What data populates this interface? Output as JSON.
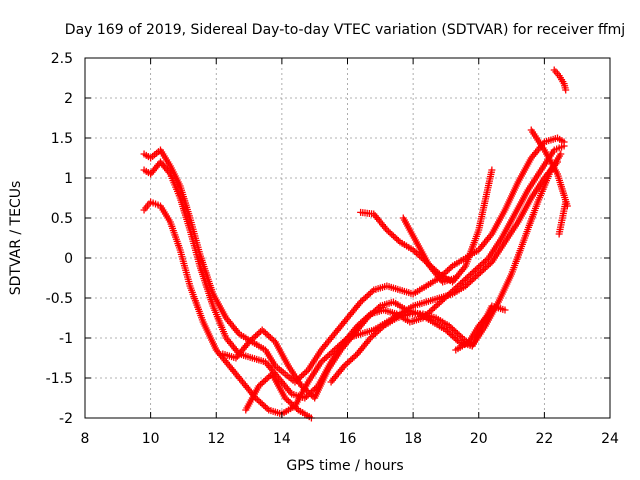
{
  "chart_data": {
    "type": "scatter",
    "title": "Day 169 of 2019, Sidereal Day-to-day VTEC variation (SDTVAR) for receiver ffmj",
    "xlabel": "GPS time / hours",
    "ylabel": "SDTVAR / TECUs",
    "xlim": [
      8,
      24
    ],
    "ylim": [
      -2,
      2.5
    ],
    "x_ticks": [
      "8",
      "10",
      "12",
      "14",
      "16",
      "18",
      "20",
      "22",
      "24"
    ],
    "y_ticks": [
      "-2",
      "-1.5",
      "-1",
      "-0.5",
      "0",
      "0.5",
      "1",
      "1.5",
      "2",
      "2.5"
    ],
    "grid": true,
    "legend": "none",
    "marker": "plus",
    "color": "#ff0000",
    "series": [
      {
        "x": [
          9.8,
          10.0,
          10.3,
          10.6,
          10.9,
          11.2,
          11.5,
          11.9,
          12.3,
          12.7,
          13.1,
          13.5,
          13.8,
          14.1,
          14.4,
          14.8,
          15.2,
          15.6,
          16.0,
          16.4,
          16.8,
          17.2,
          17.6,
          18.0,
          18.4,
          18.8,
          19.2,
          19.6,
          20.0,
          20.4,
          20.8,
          21.2,
          21.6,
          22.0,
          22.4,
          22.6
        ],
        "y": [
          1.3,
          1.25,
          1.35,
          1.15,
          0.9,
          0.5,
          0.05,
          -0.45,
          -0.75,
          -0.95,
          -1.05,
          -1.15,
          -1.35,
          -1.45,
          -1.55,
          -1.4,
          -1.15,
          -0.95,
          -0.75,
          -0.55,
          -0.4,
          -0.35,
          -0.4,
          -0.45,
          -0.35,
          -0.25,
          -0.1,
          0.0,
          0.1,
          0.3,
          0.6,
          0.95,
          1.25,
          1.45,
          1.5,
          1.45
        ]
      },
      {
        "x": [
          9.8,
          10.0,
          10.3,
          10.6,
          10.9,
          11.2,
          11.5,
          11.9,
          12.3,
          12.7,
          13.1,
          13.5,
          13.9,
          14.3,
          14.7,
          15.1,
          15.5,
          15.9,
          16.3,
          16.7,
          17.1,
          17.5,
          17.9,
          18.3,
          18.7,
          19.1,
          19.5,
          19.9,
          20.3,
          20.7,
          21.1,
          21.5,
          21.9,
          22.3,
          22.6
        ],
        "y": [
          1.1,
          1.05,
          1.2,
          1.05,
          0.75,
          0.35,
          -0.1,
          -0.6,
          -1.0,
          -1.2,
          -1.25,
          -1.3,
          -1.5,
          -1.7,
          -1.75,
          -1.6,
          -1.3,
          -1.05,
          -0.85,
          -0.7,
          -0.65,
          -0.7,
          -0.8,
          -0.75,
          -0.6,
          -0.45,
          -0.3,
          -0.15,
          0.0,
          0.25,
          0.55,
          0.85,
          1.1,
          1.35,
          1.4
        ]
      },
      {
        "x": [
          9.8,
          10.0,
          10.3,
          10.6,
          10.9,
          11.2,
          11.6,
          12.0,
          12.4,
          12.8,
          13.2,
          13.6,
          14.0,
          14.4,
          14.8,
          15.2,
          15.6,
          16.0,
          16.4,
          16.8,
          17.2,
          17.6,
          18.0,
          18.4,
          18.8,
          19.2,
          19.6,
          20.0,
          20.4,
          20.8,
          21.2,
          21.6,
          22.0,
          22.4
        ],
        "y": [
          0.6,
          0.7,
          0.65,
          0.45,
          0.1,
          -0.35,
          -0.8,
          -1.15,
          -1.35,
          -1.55,
          -1.75,
          -1.9,
          -1.95,
          -1.85,
          -1.55,
          -1.3,
          -1.15,
          -1.0,
          -0.95,
          -0.9,
          -0.8,
          -0.7,
          -0.6,
          -0.55,
          -0.5,
          -0.45,
          -0.35,
          -0.2,
          -0.05,
          0.2,
          0.45,
          0.75,
          1.0,
          1.2
        ]
      },
      {
        "x": [
          12.2,
          12.6,
          13.0,
          13.4,
          13.8,
          14.2,
          14.6,
          15.0,
          15.4,
          15.8,
          16.2,
          16.6,
          17.0,
          17.4,
          17.8,
          18.2,
          18.6,
          19.0,
          19.4,
          19.8,
          20.2,
          20.6,
          21.0,
          21.4,
          21.8,
          22.2,
          22.5
        ],
        "y": [
          -1.2,
          -1.25,
          -1.05,
          -0.9,
          -1.05,
          -1.35,
          -1.6,
          -1.75,
          -1.4,
          -1.15,
          -0.95,
          -0.75,
          -0.6,
          -0.55,
          -0.65,
          -0.7,
          -0.8,
          -0.9,
          -1.05,
          -1.1,
          -0.85,
          -0.55,
          -0.2,
          0.25,
          0.7,
          1.1,
          1.3
        ]
      },
      {
        "x": [
          12.9,
          13.3,
          13.7,
          14.1,
          14.5,
          14.9
        ],
        "y": [
          -1.9,
          -1.6,
          -1.45,
          -1.75,
          -1.9,
          -2.0
        ]
      },
      {
        "x": [
          15.5,
          15.9,
          16.3,
          16.7,
          17.1,
          17.5,
          17.9,
          18.3,
          18.7,
          19.1,
          19.5,
          19.8,
          20.1,
          20.4,
          20.8
        ],
        "y": [
          -1.55,
          -1.35,
          -1.2,
          -1.0,
          -0.85,
          -0.75,
          -0.7,
          -0.7,
          -0.75,
          -0.85,
          -1.0,
          -1.1,
          -0.85,
          -0.6,
          -0.65
        ]
      },
      {
        "x": [
          16.4,
          16.8,
          17.2,
          17.6,
          18.0,
          18.4,
          18.8,
          19.2,
          19.6,
          20.0,
          20.4
        ],
        "y": [
          0.57,
          0.55,
          0.35,
          0.2,
          0.1,
          -0.05,
          -0.2,
          -0.3,
          -0.1,
          0.35,
          1.1
        ]
      },
      {
        "x": [
          17.7,
          18.1,
          18.5,
          18.9,
          19.3
        ],
        "y": [
          0.5,
          0.2,
          -0.1,
          -0.3,
          -0.25
        ]
      },
      {
        "x": [
          19.3,
          19.7,
          20.0,
          20.3
        ],
        "y": [
          -1.15,
          -1.05,
          -0.85,
          -0.7
        ]
      },
      {
        "x": [
          21.6,
          22.0,
          22.4,
          22.7
        ],
        "y": [
          1.6,
          1.35,
          1.05,
          0.65
        ]
      },
      {
        "x": [
          22.3,
          22.45,
          22.6,
          22.65
        ],
        "y": [
          2.35,
          2.28,
          2.18,
          2.1
        ]
      },
      {
        "x": [
          22.45,
          22.55,
          22.65
        ],
        "y": [
          0.3,
          0.5,
          0.7
        ]
      }
    ]
  }
}
